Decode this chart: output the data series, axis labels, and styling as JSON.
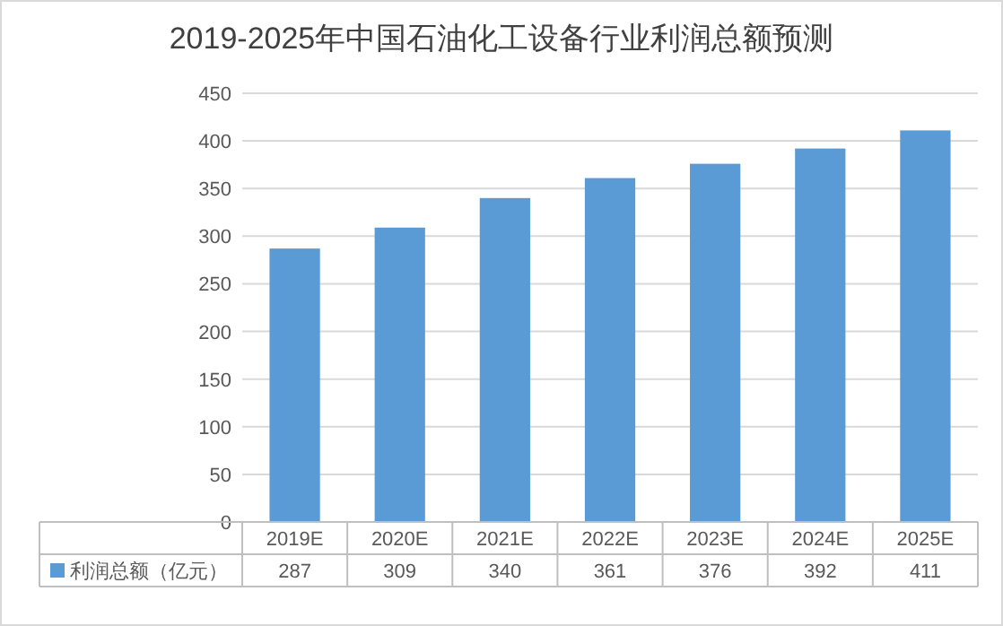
{
  "chart_data": {
    "type": "bar",
    "title": "2019-2025年中国石油化工设备行业利润总额预测",
    "categories": [
      "2019E",
      "2020E",
      "2021E",
      "2022E",
      "2023E",
      "2024E",
      "2025E"
    ],
    "series": [
      {
        "name": "利润总额（亿元）",
        "color": "#5b9bd5",
        "values": [
          287,
          309,
          340,
          361,
          376,
          392,
          411
        ]
      }
    ],
    "ylim": [
      0,
      450
    ],
    "yticks": [
      0,
      50,
      100,
      150,
      200,
      250,
      300,
      350,
      400,
      450
    ],
    "grid": "y",
    "data_labels": true
  }
}
